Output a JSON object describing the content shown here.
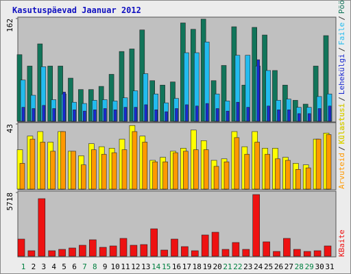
{
  "chart_data": {
    "type": "bar",
    "title": "Kasutuspäevad Jaanuar 2012",
    "categories": [
      1,
      2,
      3,
      4,
      5,
      6,
      7,
      8,
      9,
      10,
      11,
      12,
      13,
      14,
      15,
      16,
      17,
      18,
      19,
      20,
      21,
      22,
      23,
      24,
      25,
      26,
      27,
      28,
      29,
      30,
      31
    ],
    "category_colors": [
      "#008040",
      "#000000",
      "#000000",
      "#000000",
      "#000000",
      "#000000",
      "#008040",
      "#008040",
      "#000000",
      "#000000",
      "#000000",
      "#000000",
      "#000000",
      "#008040",
      "#008040",
      "#000000",
      "#000000",
      "#000000",
      "#000000",
      "#000000",
      "#008040",
      "#008040",
      "#000000",
      "#000000",
      "#000000",
      "#000000",
      "#000000",
      "#008040",
      "#008040",
      "#000000",
      "#000000"
    ],
    "legend_separator": "/",
    "panels": [
      {
        "ylim": [
          0,
          162
        ],
        "yticks": [
          162
        ],
        "series": [
          {
            "name": "Pöördumisi",
            "color": "#11755a",
            "values": [
              105,
              87,
              122,
              87,
              87,
              68,
              50,
              50,
              55,
              74,
              110,
              114,
              144,
              64,
              57,
              62,
              155,
              145,
              161,
              64,
              88,
              149,
              57,
              148,
              136,
              80,
              57,
              33,
              27,
              87,
              135
            ]
          },
          {
            "name": "Faile",
            "color": "#22bbee",
            "values": [
              65,
              41,
              86,
              34,
              43,
              30,
              28,
              33,
              34,
              32,
              37,
              48,
              75,
              43,
              29,
              36,
              108,
              108,
              125,
              43,
              32,
              104,
              104,
              87,
              80,
              33,
              35,
              22,
              22,
              39,
              43
            ]
          },
          {
            "name": "Lehekülgi",
            "color": "#1a2ad0",
            "values": [
              22,
              20,
              25,
              20,
              46,
              18,
              16,
              18,
              20,
              18,
              22,
              22,
              26,
              18,
              15,
              20,
              26,
              24,
              28,
              20,
              16,
              30,
              22,
              97,
              24,
              18,
              18,
              12,
              12,
              20,
              24
            ]
          }
        ]
      },
      {
        "ylim": [
          0,
          43
        ],
        "yticks": [
          43
        ],
        "series": [
          {
            "name": "Külastusi",
            "color": "#ffff00",
            "values": [
              26,
              35,
              38,
              31,
              38,
              25,
              22,
              30,
              28,
              27,
              33,
              42,
              35,
              19,
              21,
              25,
              27,
              39,
              32,
              19,
              20,
              38,
              28,
              38,
              27,
              27,
              21,
              17,
              16,
              33,
              37
            ]
          },
          {
            "name": "Arvuteid",
            "color": "#ff9900",
            "values": [
              17,
              33,
              31,
              25,
              38,
              25,
              16,
              26,
              23,
              24,
              26,
              38,
              31,
              18,
              18,
              24,
              25,
              26,
              26,
              15,
              18,
              34,
              23,
              31,
              23,
              20,
              19,
              13,
              14,
              33,
              36
            ]
          }
        ]
      },
      {
        "ylim": [
          0,
          5718
        ],
        "yticks": [
          5718
        ],
        "series": [
          {
            "name": "KBaite",
            "color": "#ee1111",
            "values": [
              1537,
              492,
              5165,
              492,
              615,
              738,
              984,
              1476,
              799,
              922,
              1599,
              984,
              1045,
              2459,
              553,
              1537,
              861,
              492,
              1906,
              2152,
              615,
              1230,
              615,
              5533,
              1291,
              430,
              1599,
              615,
              430,
              492,
              922
            ]
          }
        ]
      }
    ]
  }
}
